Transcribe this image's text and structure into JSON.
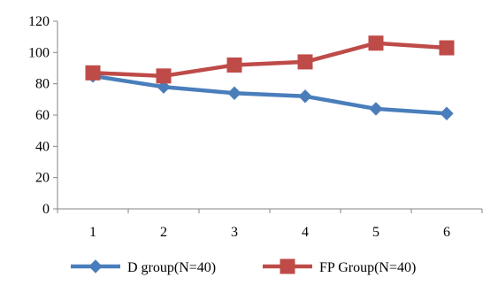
{
  "chart_data": {
    "type": "line",
    "categories": [
      "1",
      "2",
      "3",
      "4",
      "5",
      "6"
    ],
    "ylim": [
      0,
      120
    ],
    "yticks": [
      "0",
      "20",
      "40",
      "60",
      "80",
      "100",
      "120"
    ],
    "grid": false,
    "legend_position": "bottom",
    "series": [
      {
        "name": "D group(N=40)",
        "values": [
          85,
          78,
          74,
          72,
          64,
          61
        ],
        "color": "#4a7ebb",
        "marker": "diamond"
      },
      {
        "name": "FP Group(N=40)",
        "values": [
          87,
          85,
          92,
          94,
          106,
          103
        ],
        "color": "#be4b48",
        "marker": "square"
      }
    ]
  }
}
